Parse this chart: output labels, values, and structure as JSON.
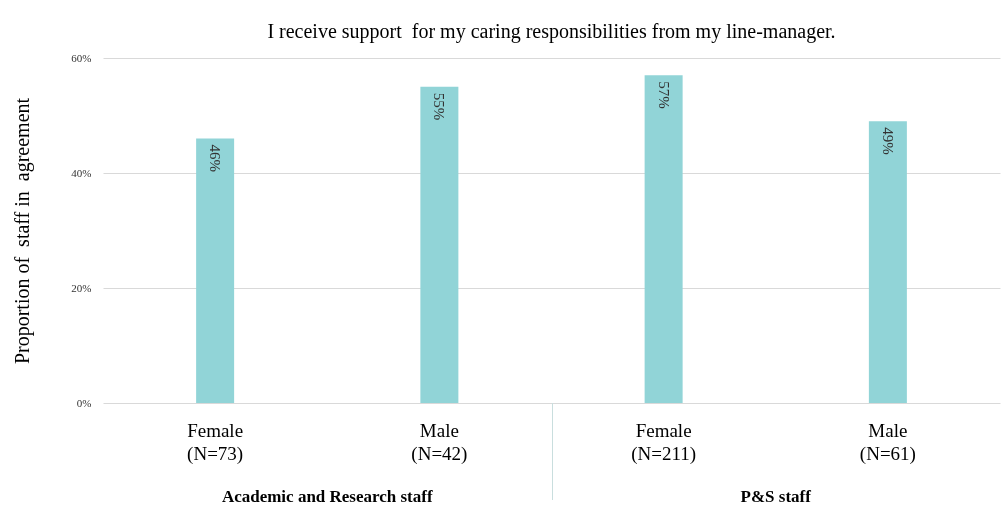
{
  "chart_data": {
    "type": "bar",
    "title": "I receive support  for my caring responsibilities from my line-manager.",
    "ylabel": "Proportion of  staff in  agreement",
    "categories": [
      "Female\n(N=73)",
      "Male\n(N=42)",
      "Female\n(N=211)",
      "Male\n(N=61)"
    ],
    "values": [
      46,
      55,
      57,
      49
    ],
    "color": "#91d4d7",
    "value_labels": [
      "46%",
      "55%",
      "57%",
      "49%"
    ],
    "ylim": [
      0,
      60
    ],
    "yticks": [
      {
        "value": 0,
        "label": "0%"
      },
      {
        "value": 20,
        "label": "20%"
      },
      {
        "value": 40,
        "label": "40%"
      },
      {
        "value": 60,
        "label": "60%"
      }
    ],
    "grid": "y",
    "annotations": [
      "Academic and Research staff",
      "P&S staff"
    ]
  }
}
